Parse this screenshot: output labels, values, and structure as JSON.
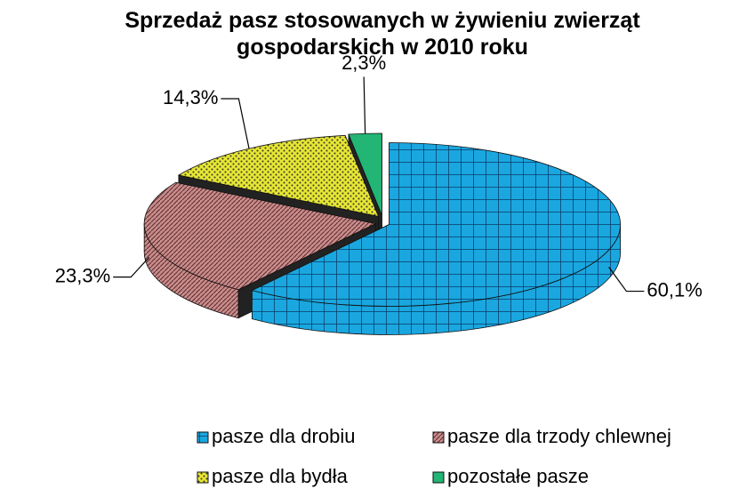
{
  "chart_data": {
    "type": "pie",
    "title": "Sprzedaż pasz stosowanych w żywieniu zwierząt gospodarskich w 2010 roku",
    "categories": [
      "pasze dla drobiu",
      "pasze dla trzody chlewnej",
      "pasze dla bydła",
      "pozostałe pasze"
    ],
    "values": [
      60.1,
      23.3,
      14.3,
      2.3
    ],
    "value_labels": [
      "60,1%",
      "23,3%",
      "14,3%",
      "2,3%"
    ],
    "colors": [
      "#1aa7e0",
      "#c98c8c",
      "#e6e633",
      "#22b573"
    ]
  }
}
